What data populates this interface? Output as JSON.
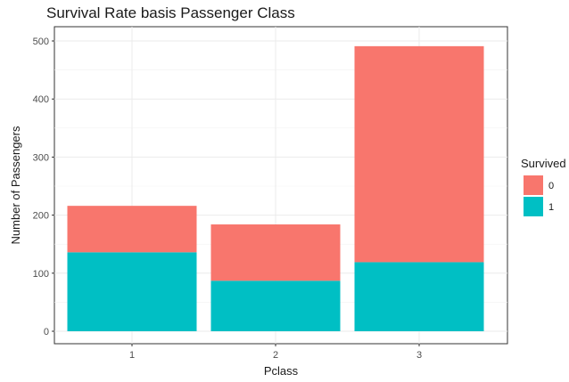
{
  "chart_data": {
    "type": "bar",
    "stacked": true,
    "title": "Survival Rate basis Passenger Class",
    "xlabel": "Pclass",
    "ylabel": "Number of Passengers",
    "categories": [
      "1",
      "2",
      "3"
    ],
    "series": [
      {
        "name": "0",
        "values": [
          80,
          97,
          372
        ],
        "color": "#F8766D"
      },
      {
        "name": "1",
        "values": [
          136,
          87,
          119
        ],
        "color": "#00BFC4"
      }
    ],
    "ylim": [
      0,
      520
    ],
    "yticks": [
      0,
      100,
      200,
      300,
      400,
      500
    ],
    "grid": true,
    "legend": {
      "title": "Survived",
      "placement": "right"
    }
  }
}
